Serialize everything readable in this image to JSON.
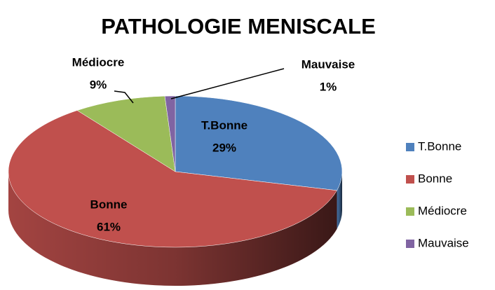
{
  "chart_data": {
    "type": "pie3d",
    "title": "PATHOLOGIE MENISCALE",
    "categories": [
      "T.Bonne",
      "Bonne",
      "Médiocre",
      "Mauvaise"
    ],
    "values": [
      29,
      61,
      9,
      1
    ],
    "value_labels": [
      "29%",
      "61%",
      "9%",
      "1%"
    ],
    "colors": [
      "#4f81bd",
      "#c0504d",
      "#9bbb59",
      "#8064a2"
    ],
    "legend": "right"
  }
}
